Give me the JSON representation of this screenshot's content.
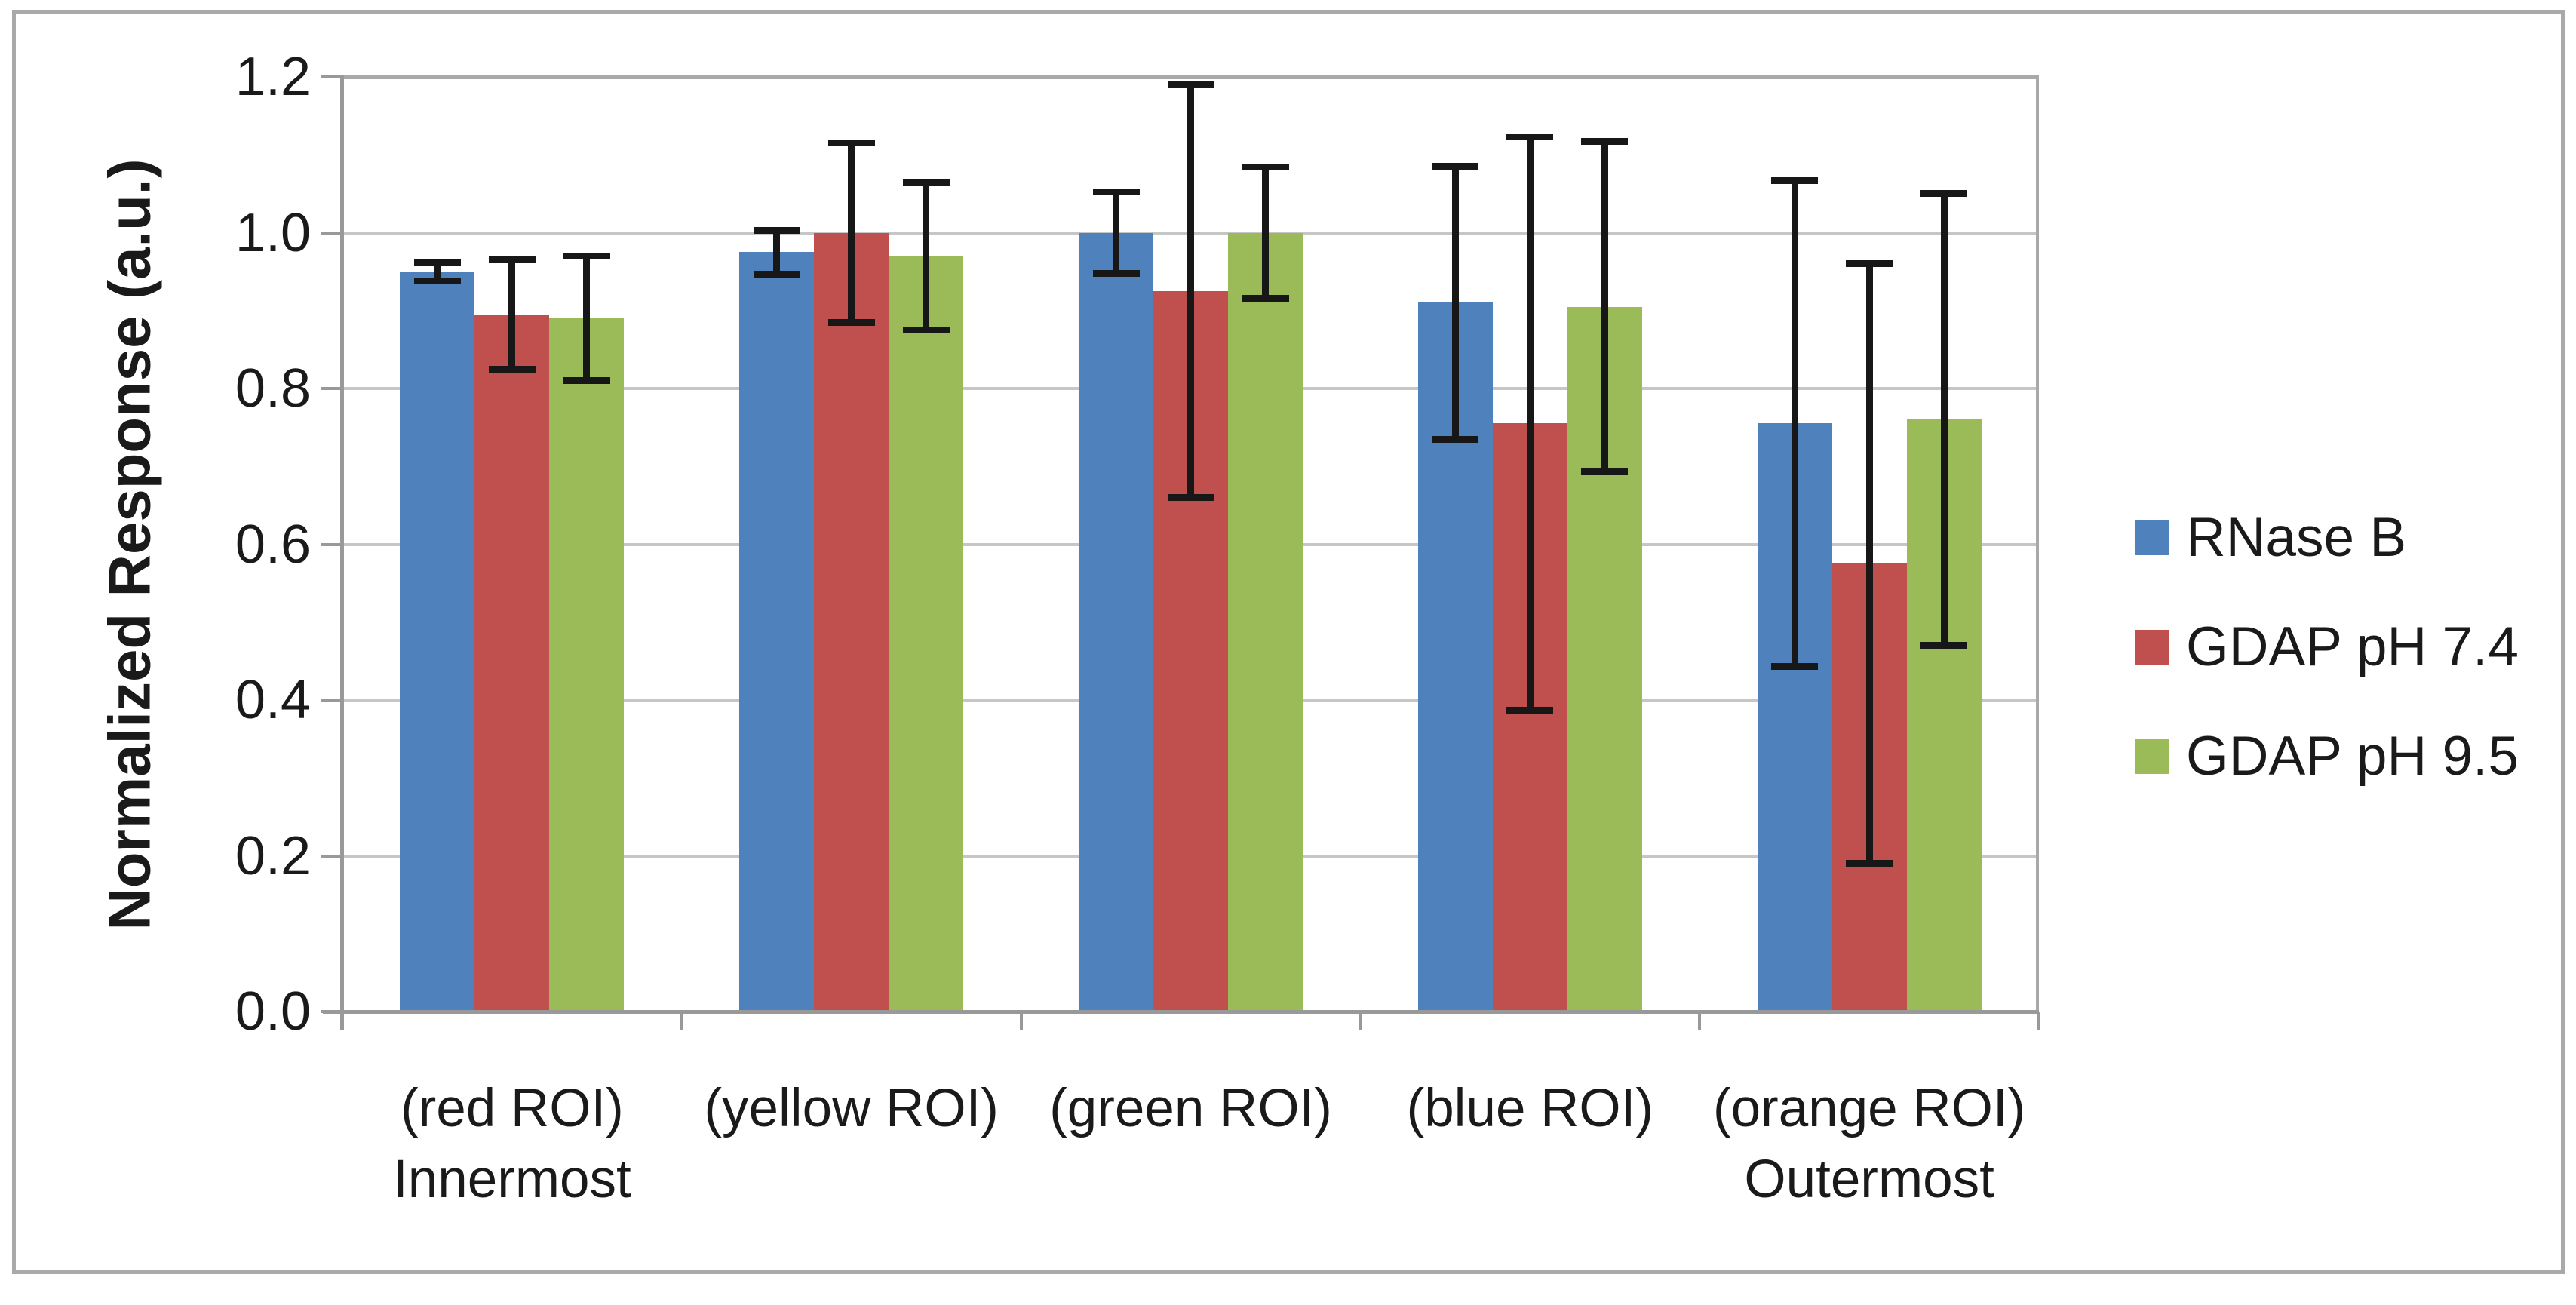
{
  "chart_data": {
    "type": "bar",
    "title": "",
    "xlabel": "",
    "ylabel": "Normalized Response (a.u.)",
    "ylim": [
      0,
      1.2
    ],
    "ytick_step": 0.2,
    "ytick_labels": [
      "1.2",
      "1.0",
      "0.8",
      "0.6",
      "0.4",
      "0.2",
      "0.0"
    ],
    "grid": true,
    "legend_position": "right-middle",
    "categories": [
      {
        "line1": "(red ROI)",
        "line2": "Innermost"
      },
      {
        "line1": "(yellow ROI)",
        "line2": ""
      },
      {
        "line1": "(green ROI)",
        "line2": ""
      },
      {
        "line1": "(blue ROI)",
        "line2": ""
      },
      {
        "line1": "(orange ROI)",
        "line2": "Outermost"
      }
    ],
    "series": [
      {
        "name": "RNase B",
        "color": "#4F81BD",
        "values": [
          0.95,
          0.975,
          1.0,
          0.91,
          0.755
        ],
        "errors": [
          0.012,
          0.028,
          0.052,
          0.175,
          0.312
        ]
      },
      {
        "name": "GDAP pH 7.4",
        "color": "#C0504D",
        "values": [
          0.895,
          1.0,
          0.925,
          0.755,
          0.575
        ],
        "errors": [
          0.07,
          0.115,
          0.265,
          0.368,
          0.385
        ]
      },
      {
        "name": "GDAP pH 9.5",
        "color": "#9BBB59",
        "values": [
          0.89,
          0.97,
          1.0,
          0.905,
          0.76
        ],
        "errors": [
          0.08,
          0.095,
          0.084,
          0.212,
          0.29
        ]
      }
    ],
    "colors": {
      "gridline": "#C6C6C6",
      "axis": "#999999",
      "plot_border": "#A9A9A9",
      "outer_border": "#A9A9A9",
      "error_bar": "#171717",
      "text": "#1a1a1a"
    }
  }
}
